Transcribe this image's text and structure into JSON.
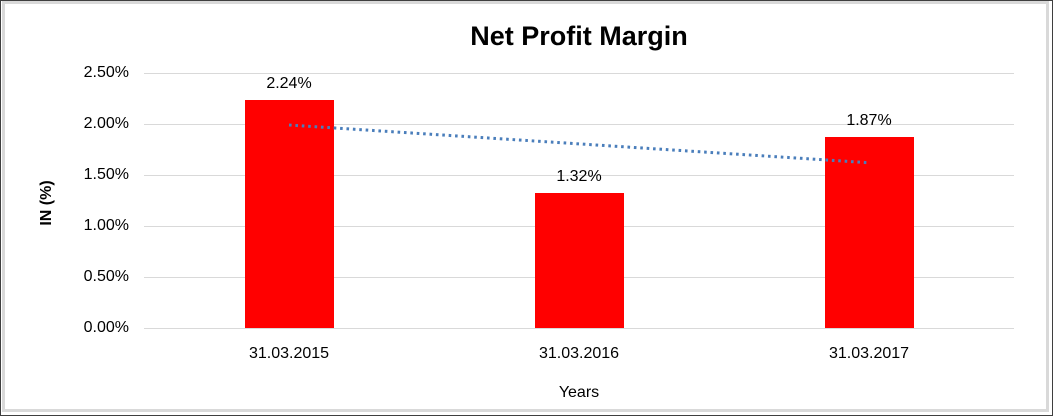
{
  "chart_data": {
    "type": "bar",
    "title": "Net Profit Margin",
    "xlabel": "Years",
    "ylabel": "IN (%)",
    "categories": [
      "31.03.2015",
      "31.03.2016",
      "31.03.2017"
    ],
    "values": [
      2.24,
      1.32,
      1.87
    ],
    "data_labels": [
      "2.24%",
      "1.32%",
      "1.87%"
    ],
    "ylim": [
      0,
      2.5
    ],
    "ytick_step": 0.5,
    "ytick_labels": [
      "0.00%",
      "0.50%",
      "1.00%",
      "1.50%",
      "2.00%",
      "2.50%"
    ],
    "grid": true,
    "legend": "none",
    "bar_color": "#ff0000",
    "gridline_color": "#d9d9d9",
    "text_color": "#000000",
    "trendline": {
      "type": "linear",
      "style": "dotted",
      "color": "#4a7ebb",
      "start_value": 1.99,
      "end_value": 1.62
    }
  }
}
